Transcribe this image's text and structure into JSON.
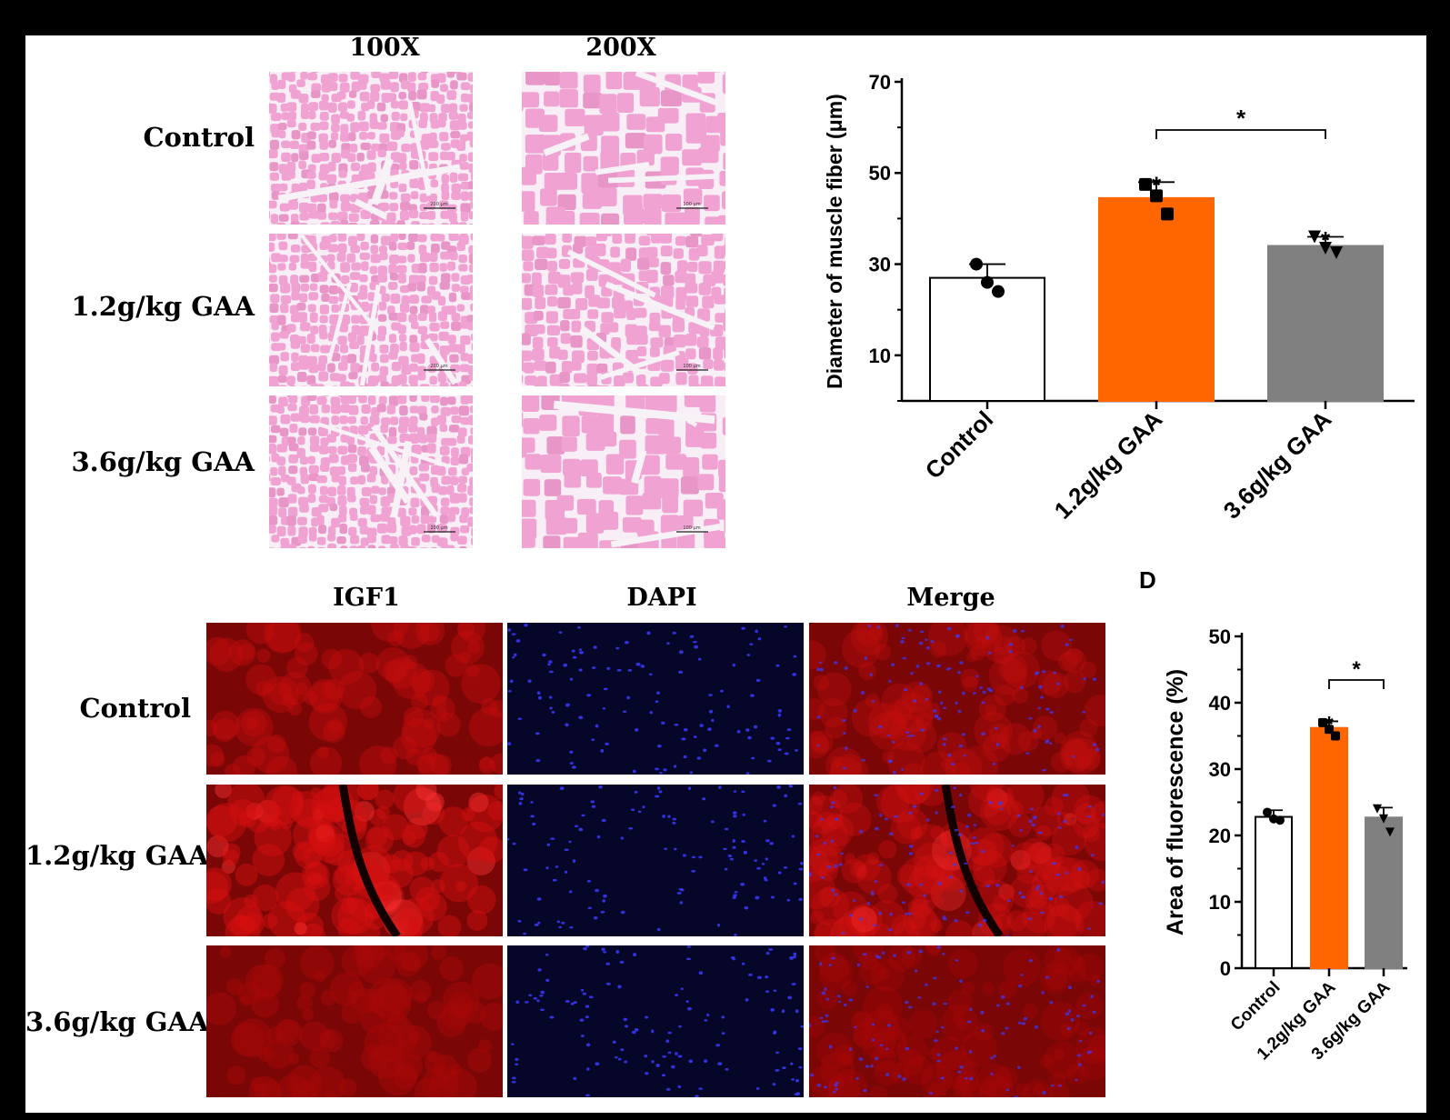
{
  "he_section": {
    "col_headers": [
      "100X",
      "200X"
    ],
    "row_labels": [
      "Control",
      "1.2g/kg GAA",
      "3.6g/kg GAA"
    ],
    "scale_labels": [
      "200 μm",
      "100 μm"
    ]
  },
  "if_section": {
    "col_headers": [
      "IGF1",
      "DAPI",
      "Merge"
    ],
    "row_labels": [
      "Control",
      "1.2g/kg GAA",
      "3.6g/kg GAA"
    ]
  },
  "panel_letter_d": "D",
  "colors": {
    "control_bar": "#ffffff",
    "gaa12_bar": "#ff6600",
    "gaa36_bar": "#808080",
    "he_tissue": "#f0a3d3",
    "igf1": "#d41010",
    "dapi": "#1e1ef5"
  },
  "chart_data": [
    {
      "type": "bar",
      "categories": [
        "Control",
        "1.2g/kg GAA",
        "3.6g/kg GAA"
      ],
      "values": [
        27,
        44.5,
        34
      ],
      "errors": [
        3,
        3.5,
        2
      ],
      "points": [
        [
          30,
          26,
          24
        ],
        [
          47.5,
          45,
          41
        ],
        [
          36,
          33.5,
          32.5
        ]
      ],
      "ylabel": "Diameter of muscle fiber (μm)",
      "yticks": [
        10,
        30,
        50,
        70
      ],
      "ylim": [
        0,
        70
      ],
      "significance": [
        "",
        "*",
        "*"
      ],
      "bracket": {
        "from": 1,
        "to": 2,
        "label": "*"
      }
    },
    {
      "type": "bar",
      "categories": [
        "Control",
        "1.2g/kg GAA",
        "3.6g/kg GAA"
      ],
      "values": [
        22.8,
        36.2,
        22.7
      ],
      "errors": [
        1,
        1,
        1.5
      ],
      "points": [
        [
          23.5,
          22.5,
          22.3
        ],
        [
          37,
          36,
          35
        ],
        [
          24,
          22.5,
          20.5
        ]
      ],
      "ylabel": "Area of fluorescence (%)",
      "yticks": [
        0,
        10,
        20,
        30,
        40,
        50
      ],
      "ylim": [
        0,
        50
      ],
      "significance": [
        "",
        "*",
        ""
      ],
      "bracket": {
        "from": 1,
        "to": 2,
        "label": "*"
      }
    }
  ]
}
